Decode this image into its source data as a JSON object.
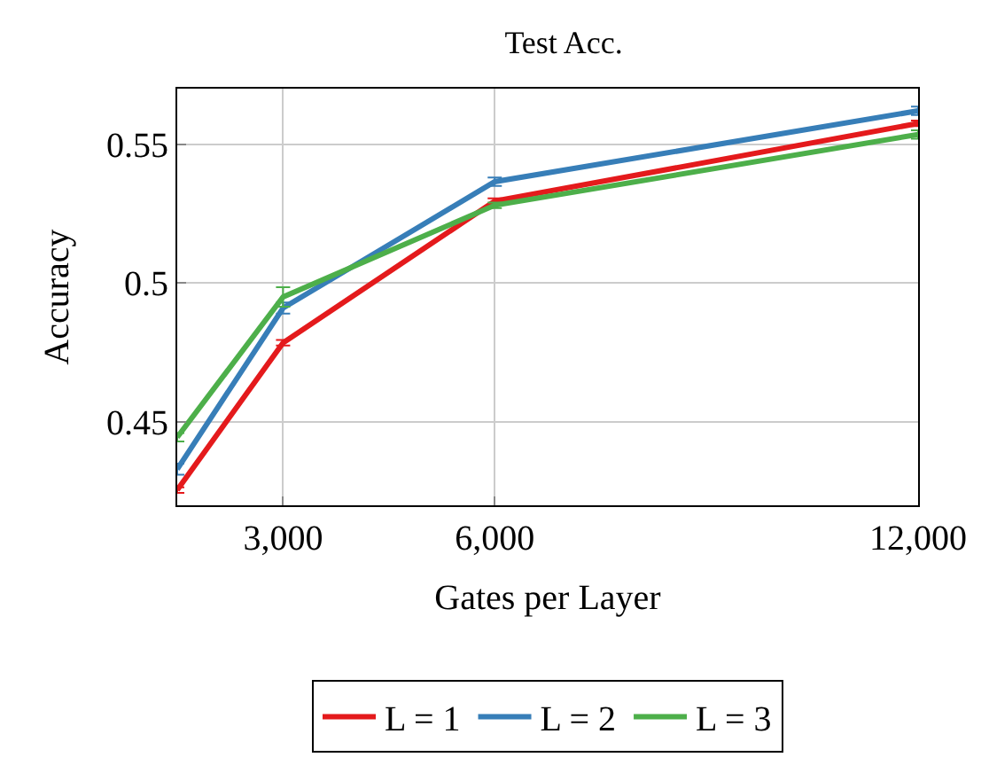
{
  "chart_data": {
    "type": "line",
    "title": "Test Acc.",
    "xlabel": "Gates per Layer",
    "ylabel": "Accuracy",
    "x": [
      1500,
      3000,
      6000,
      12000
    ],
    "series": [
      {
        "name": "L = 1",
        "color": "#e41a1c",
        "values": [
          0.4255,
          0.4785,
          0.5295,
          0.5575
        ],
        "errors": [
          0.001,
          0.001,
          0.001,
          0.001
        ]
      },
      {
        "name": "L = 2",
        "color": "#377eb8",
        "values": [
          0.433,
          0.491,
          0.5365,
          0.562
        ],
        "errors": [
          0.002,
          0.002,
          0.0015,
          0.0015
        ]
      },
      {
        "name": "L = 3",
        "color": "#4daf4a",
        "values": [
          0.4445,
          0.495,
          0.528,
          0.5535
        ],
        "errors": [
          0.0015,
          0.0035,
          0.001,
          0.0015
        ]
      }
    ],
    "xlim": [
      1500,
      12000
    ],
    "xticks": [
      {
        "value": 3000,
        "label": "3,000"
      },
      {
        "value": 6000,
        "label": "6,000"
      },
      {
        "value": 12000,
        "label": "12,000"
      }
    ],
    "ylim": [
      0.42,
      0.57
    ],
    "yticks": [
      0.45,
      {
        "value": 0.5,
        "label": "0.5"
      },
      0.55
    ],
    "grid": true,
    "legend": "bottom",
    "line_style": "solid"
  }
}
